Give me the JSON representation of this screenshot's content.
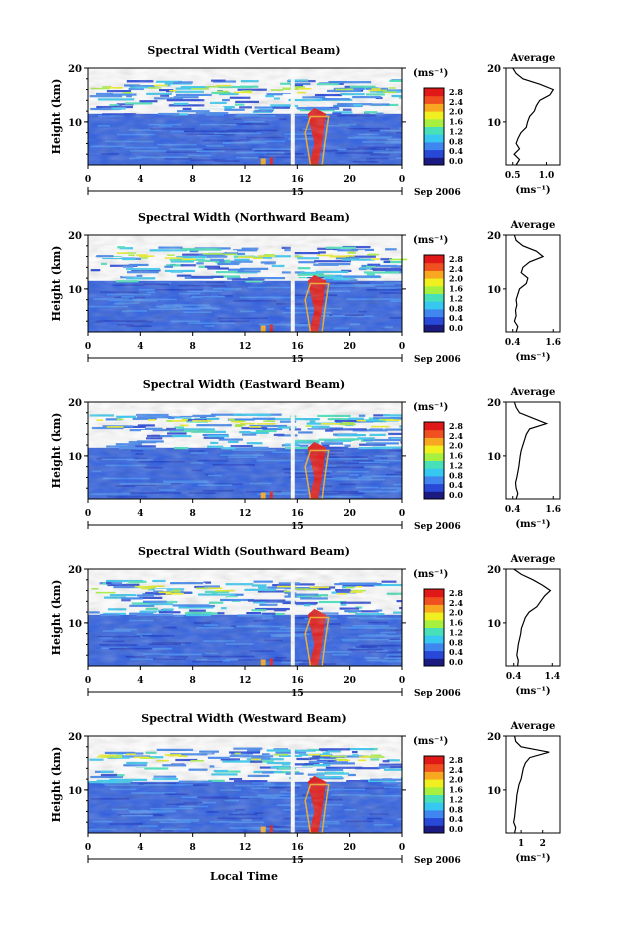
{
  "figure": {
    "xlabel": "Local Time",
    "x_ticks": [
      "0",
      "4",
      "8",
      "12",
      "16",
      "20",
      "0"
    ],
    "date_marker": "15",
    "date_label": "Sep 2006",
    "colorbar_unit": "(ms⁻¹)",
    "colorbar_ticks": [
      "2.8",
      "2.4",
      "2.0",
      "1.6",
      "1.2",
      "0.8",
      "0.4",
      "0.0"
    ],
    "colorbar_colors": [
      "#1a1a80",
      "#2848d8",
      "#3f86f0",
      "#36c8f0",
      "#48e0b8",
      "#a8f040",
      "#f0f020",
      "#f8a820",
      "#f05020",
      "#e01818"
    ],
    "profile_title": "Average",
    "profile_xlabel": "(ms⁻¹)",
    "y_ticks": [
      "20",
      "10"
    ]
  },
  "chart_data": [
    {
      "type": "heatmap",
      "title": "Spectral Width (Vertical Beam)",
      "ylabel": "Height (km)",
      "xlim": [
        0,
        24
      ],
      "ylim": [
        2,
        20
      ],
      "colorbar_range": [
        0.0,
        2.8
      ],
      "profile": {
        "title": "Average",
        "xticks": [
          "0.5",
          "1.0"
        ],
        "xlim": [
          0.4,
          1.2
        ],
        "height": [
          2,
          3,
          4,
          5,
          6,
          7,
          8,
          9,
          10,
          11,
          12,
          13,
          14,
          15,
          16,
          17,
          18,
          19,
          20
        ],
        "width": [
          0.55,
          0.6,
          0.52,
          0.6,
          0.55,
          0.58,
          0.62,
          0.7,
          0.72,
          0.75,
          0.82,
          0.85,
          0.9,
          1.05,
          1.1,
          0.9,
          0.65,
          0.55,
          0.5
        ]
      }
    },
    {
      "type": "heatmap",
      "title": "Spectral Width (Northward Beam)",
      "ylabel": "Height (km)",
      "xlim": [
        0,
        24
      ],
      "ylim": [
        2,
        20
      ],
      "colorbar_range": [
        0.0,
        2.8
      ],
      "profile": {
        "title": "Average",
        "xticks": [
          "0.4",
          "1.6"
        ],
        "xlim": [
          0.2,
          1.8
        ],
        "height": [
          2,
          3,
          4,
          5,
          6,
          7,
          8,
          9,
          10,
          11,
          12,
          13,
          14,
          15,
          16,
          17,
          18,
          19,
          20
        ],
        "width": [
          0.5,
          0.55,
          0.45,
          0.5,
          0.48,
          0.52,
          0.5,
          0.55,
          0.6,
          0.8,
          0.85,
          0.65,
          0.7,
          0.9,
          1.3,
          1.1,
          0.7,
          0.5,
          0.45
        ]
      }
    },
    {
      "type": "heatmap",
      "title": "Spectral Width (Eastward Beam)",
      "ylabel": "Height (km)",
      "xlim": [
        0,
        24
      ],
      "ylim": [
        2,
        20
      ],
      "colorbar_range": [
        0.0,
        2.8
      ],
      "profile": {
        "title": "Average",
        "xticks": [
          "0.4",
          "1.6"
        ],
        "xlim": [
          0.2,
          1.8
        ],
        "height": [
          2,
          3,
          4,
          5,
          6,
          7,
          8,
          9,
          10,
          11,
          12,
          13,
          14,
          15,
          16,
          17,
          18,
          19,
          20
        ],
        "width": [
          0.5,
          0.55,
          0.5,
          0.48,
          0.52,
          0.55,
          0.58,
          0.6,
          0.62,
          0.65,
          0.7,
          0.75,
          0.8,
          0.9,
          1.4,
          1.0,
          0.6,
          0.5,
          0.45
        ]
      }
    },
    {
      "type": "heatmap",
      "title": "Spectral Width (Southward Beam)",
      "ylabel": "Height (km)",
      "xlim": [
        0,
        24
      ],
      "ylim": [
        2,
        20
      ],
      "colorbar_range": [
        0.0,
        2.8
      ],
      "profile": {
        "title": "Average",
        "xticks": [
          "0.4",
          "1.4"
        ],
        "xlim": [
          0.2,
          1.6
        ],
        "height": [
          2,
          3,
          4,
          5,
          6,
          7,
          8,
          9,
          10,
          11,
          12,
          13,
          14,
          15,
          16,
          17,
          18,
          19,
          20
        ],
        "width": [
          0.5,
          0.52,
          0.48,
          0.5,
          0.52,
          0.55,
          0.58,
          0.6,
          0.65,
          0.7,
          0.8,
          1.0,
          1.1,
          1.2,
          1.35,
          1.15,
          0.9,
          0.6,
          0.4
        ]
      }
    },
    {
      "type": "heatmap",
      "title": "Spectral Width (Westward Beam)",
      "ylabel": "Height (km)",
      "xlim": [
        0,
        24
      ],
      "ylim": [
        2,
        20
      ],
      "colorbar_range": [
        0.0,
        2.8
      ],
      "profile": {
        "title": "Average",
        "xticks": [
          "1",
          "2"
        ],
        "xlim": [
          0.3,
          2.8
        ],
        "height": [
          2,
          3,
          4,
          5,
          6,
          7,
          8,
          9,
          10,
          11,
          12,
          13,
          14,
          15,
          16,
          17,
          18,
          19,
          20
        ],
        "width": [
          0.7,
          0.75,
          0.65,
          0.7,
          0.72,
          0.75,
          0.78,
          0.8,
          0.85,
          0.9,
          1.0,
          1.05,
          1.1,
          1.2,
          1.4,
          2.3,
          1.0,
          0.75,
          0.7
        ]
      }
    }
  ]
}
